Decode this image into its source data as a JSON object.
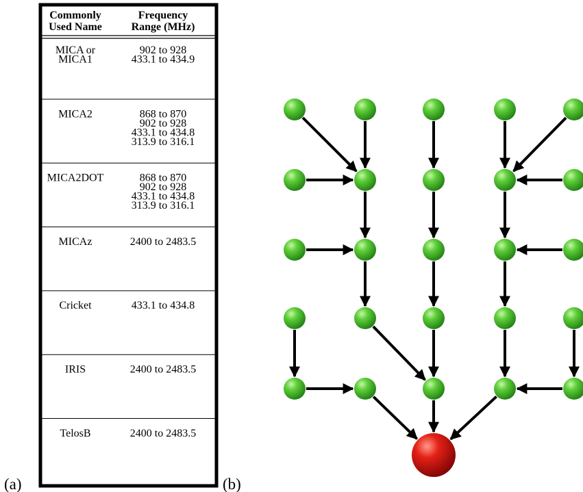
{
  "labels": {
    "a": "(a)",
    "b": "(b)"
  },
  "table": {
    "header": [
      [
        "Commonly",
        "Used Name"
      ],
      [
        "Frequency",
        "Range (MHz)"
      ]
    ],
    "rows": [
      {
        "name": [
          "MICA or",
          "MICA1"
        ],
        "range": [
          "902 to 928",
          "433.1 to 434.9"
        ]
      },
      {
        "name": [
          "MICA2"
        ],
        "range": [
          "868 to 870",
          "902 to 928",
          "433.1 to 434.8",
          "313.9 to 316.1"
        ]
      },
      {
        "name": [
          "MICA2DOT"
        ],
        "range": [
          "868 to 870",
          "902 to 928",
          "433.1 to 434.8",
          "313.9 to 316.1"
        ]
      },
      {
        "name": [
          "MICAz"
        ],
        "range": [
          "2400 to 2483.5"
        ]
      },
      {
        "name": [
          "Cricket"
        ],
        "range": [
          "433.1 to 434.8"
        ]
      },
      {
        "name": [
          "IRIS"
        ],
        "range": [
          "2400 to 2483.5"
        ]
      },
      {
        "name": [
          "TelosB"
        ],
        "range": [
          "2400 to 2483.5"
        ]
      }
    ]
  }
}
